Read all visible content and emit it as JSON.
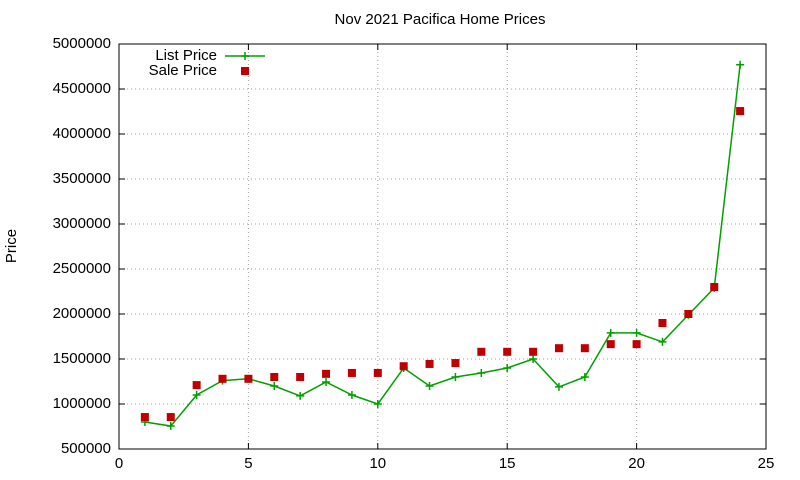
{
  "chart_data": {
    "type": "line",
    "title": "Nov 2021 Pacifica Home Prices",
    "y_label": "Price",
    "x": [
      1,
      2,
      3,
      4,
      5,
      6,
      7,
      8,
      9,
      10,
      11,
      12,
      13,
      14,
      15,
      16,
      17,
      18,
      19,
      20,
      21,
      22,
      23,
      24
    ],
    "series": [
      {
        "name": "List Price",
        "color": "#00a000",
        "line": true,
        "marker": "plus",
        "values": [
          800000,
          755000,
          1100000,
          1260000,
          1280000,
          1200000,
          1090000,
          1245000,
          1100000,
          1000000,
          1400000,
          1200000,
          1300000,
          1345000,
          1400000,
          1500000,
          1190000,
          1300000,
          1790000,
          1790000,
          1690000,
          1990000,
          2290000,
          4770000
        ]
      },
      {
        "name": "Sale Price",
        "color": "#c00000",
        "line": false,
        "marker": "square",
        "values": [
          855000,
          855000,
          1210000,
          1280000,
          1280000,
          1300000,
          1300000,
          1335000,
          1345000,
          1345000,
          1420000,
          1445000,
          1455000,
          1580000,
          1580000,
          1580000,
          1620000,
          1620000,
          1665000,
          1665000,
          1900000,
          2000000,
          2300000,
          4255000
        ]
      }
    ],
    "xlim": [
      0,
      25
    ],
    "xticks": [
      0,
      5,
      10,
      15,
      20,
      25
    ],
    "ylim": [
      500000,
      5000000
    ],
    "yticks": [
      500000,
      1000000,
      1500000,
      2000000,
      2500000,
      3000000,
      3500000,
      4000000,
      4500000,
      5000000
    ],
    "grid": true,
    "legend": "top-left"
  }
}
